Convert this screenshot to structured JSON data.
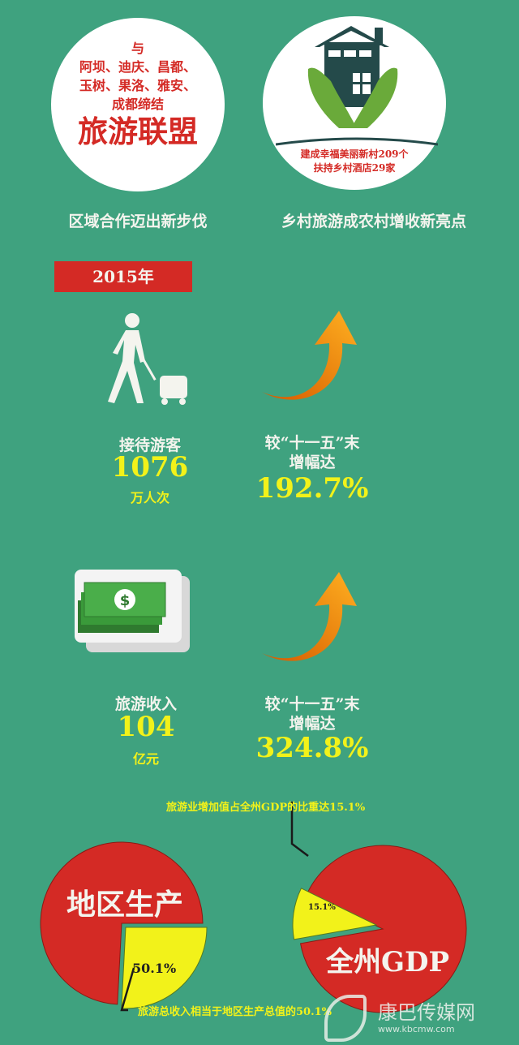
{
  "alliance": {
    "lines": [
      "与",
      "阿坝、迪庆、昌都、",
      "玉树、果洛、雅安、",
      "成都缔结"
    ],
    "headline": "旅游联盟",
    "caption": "区域合作迈出新步伐"
  },
  "rural": {
    "lines": [
      "建成幸福美丽新村209个",
      "扶持乡村酒店29家"
    ],
    "caption": "乡村旅游成农村增收新亮点"
  },
  "year_badge": "2015年",
  "visitors": {
    "label": "接待游客",
    "value": "1076",
    "unit": "万人次",
    "growth_label_1": "较“十一五”末",
    "growth_label_2": "增幅达",
    "growth": "192.7%"
  },
  "income": {
    "label": "旅游收入",
    "value": "104",
    "unit": "亿元",
    "growth_label_1": "较“十一五”末",
    "growth_label_2": "增幅达",
    "growth": "324.8%"
  },
  "pies": [
    {
      "title": "地区生产",
      "slice_label": "50.1%",
      "slice_value": 50.1,
      "note": "旅游总收入相当于地区生产总值的50.1%"
    },
    {
      "title": "全州GDP",
      "slice_label": "15.1%",
      "slice_value": 15.1,
      "note": "旅游业增加值占全州GDP的比重达15.1%"
    }
  ],
  "watermark": {
    "name": "康巴传媒网",
    "url": "www.kbcmw.com"
  },
  "colors": {
    "background": "#3fa27f",
    "red": "#d42a25",
    "yellow": "#f2f21a"
  }
}
